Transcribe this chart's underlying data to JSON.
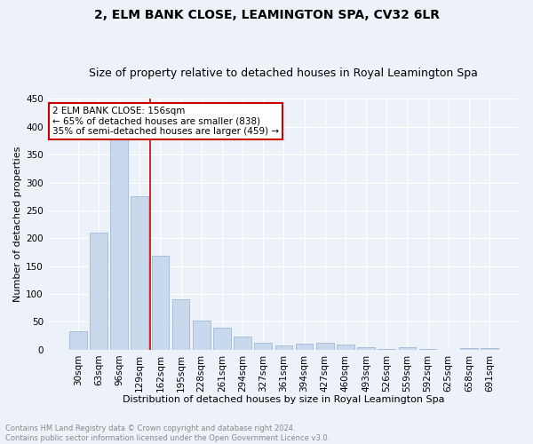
{
  "title": "2, ELM BANK CLOSE, LEAMINGTON SPA, CV32 6LR",
  "subtitle": "Size of property relative to detached houses in Royal Leamington Spa",
  "xlabel": "Distribution of detached houses by size in Royal Leamington Spa",
  "ylabel": "Number of detached properties",
  "footnote1": "Contains HM Land Registry data © Crown copyright and database right 2024.",
  "footnote2": "Contains public sector information licensed under the Open Government Licence v3.0.",
  "bar_labels": [
    "30sqm",
    "63sqm",
    "96sqm",
    "129sqm",
    "162sqm",
    "195sqm",
    "228sqm",
    "261sqm",
    "294sqm",
    "327sqm",
    "361sqm",
    "394sqm",
    "427sqm",
    "460sqm",
    "493sqm",
    "526sqm",
    "559sqm",
    "592sqm",
    "625sqm",
    "658sqm",
    "691sqm"
  ],
  "bar_values": [
    34,
    210,
    378,
    275,
    168,
    91,
    53,
    40,
    23,
    13,
    7,
    11,
    13,
    10,
    5,
    2,
    4,
    1,
    0,
    3,
    3
  ],
  "bar_color": "#c8d9ed",
  "bar_edge_color": "#a0b8d8",
  "vline_color": "#cc0000",
  "vline_x_index": 4,
  "annotation_text": "2 ELM BANK CLOSE: 156sqm\n← 65% of detached houses are smaller (838)\n35% of semi-detached houses are larger (459) →",
  "annotation_box_color": "#ffffff",
  "annotation_box_edge": "#cc0000",
  "ylim": [
    0,
    450
  ],
  "yticks": [
    0,
    50,
    100,
    150,
    200,
    250,
    300,
    350,
    400,
    450
  ],
  "bg_color": "#edf2f9",
  "plot_bg_color": "#edf2f9",
  "title_fontsize": 10,
  "subtitle_fontsize": 9,
  "axis_label_fontsize": 8,
  "tick_fontsize": 7.5,
  "annotation_fontsize": 7.5,
  "footnote_fontsize": 6
}
